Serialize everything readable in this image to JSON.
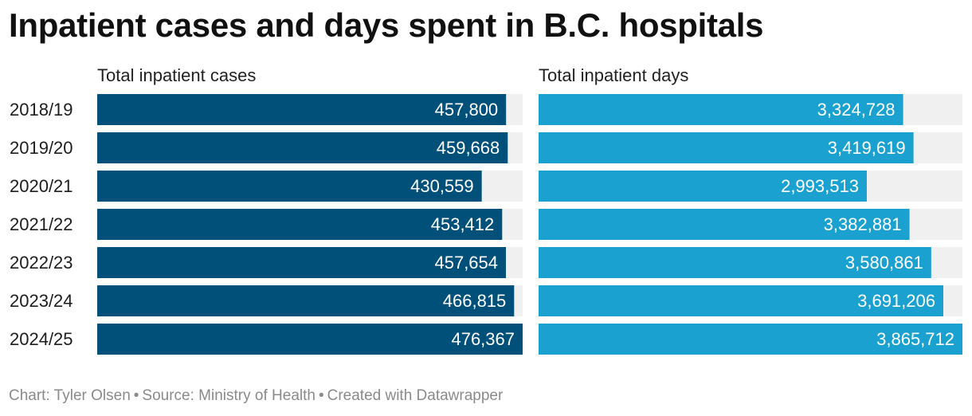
{
  "title": "Inpatient cases and days spent in B.C. hospitals",
  "footer": {
    "chart": "Chart: Tyler Olsen",
    "source": "Source: Ministry of Health",
    "credit": "Created with Datawrapper"
  },
  "colors": {
    "cases_bar": "#00507a",
    "days_bar": "#1aa1cf",
    "track": "#f0f0f0",
    "value_label": "#ffffff"
  },
  "chart_data": [
    {
      "type": "bar",
      "orientation": "horizontal",
      "title": "Total inpatient cases",
      "categories": [
        "2018/19",
        "2019/20",
        "2020/21",
        "2021/22",
        "2022/23",
        "2023/24",
        "2024/25"
      ],
      "values": [
        457800,
        459668,
        430559,
        453412,
        457654,
        466815,
        476367
      ],
      "labels": [
        "457,800",
        "459,668",
        "430,559",
        "453,412",
        "457,654",
        "466,815",
        "476,367"
      ],
      "xlim": [
        0,
        476367
      ]
    },
    {
      "type": "bar",
      "orientation": "horizontal",
      "title": "Total inpatient days",
      "categories": [
        "2018/19",
        "2019/20",
        "2020/21",
        "2021/22",
        "2022/23",
        "2023/24",
        "2024/25"
      ],
      "values": [
        3324728,
        3419619,
        2993513,
        3382881,
        3580861,
        3691206,
        3865712
      ],
      "labels": [
        "3,324,728",
        "3,419,619",
        "2,993,513",
        "3,382,881",
        "3,580,861",
        "3,691,206",
        "3,865,712"
      ],
      "xlim": [
        0,
        3865712
      ]
    }
  ]
}
